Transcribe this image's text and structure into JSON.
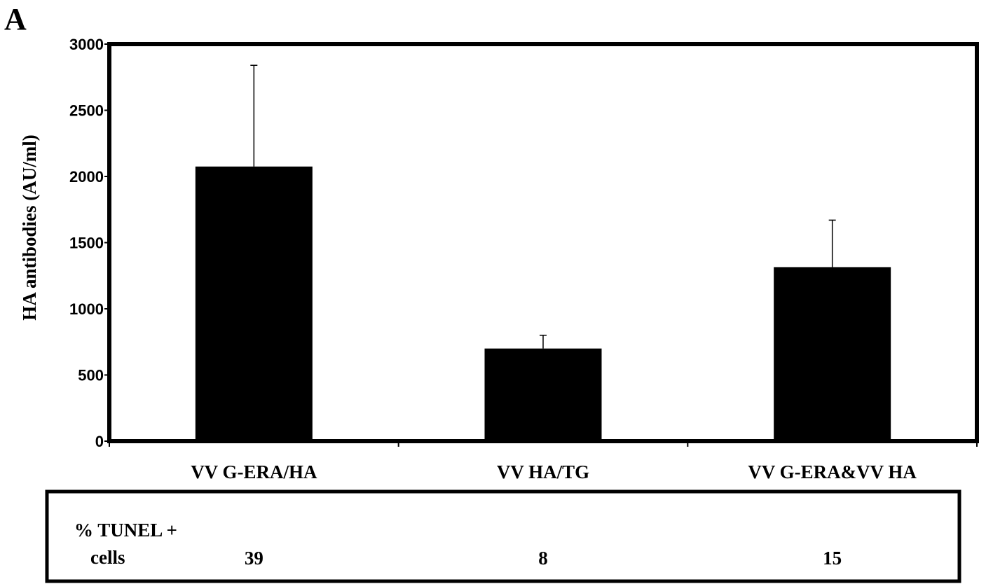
{
  "panel_label": "A",
  "chart_data": {
    "type": "bar",
    "ylabel": "HA antibodies (AU/ml)",
    "xlabel": "",
    "ylim": [
      0,
      3000
    ],
    "yticks": [
      "0",
      "500",
      "1000",
      "1500",
      "2000",
      "2500",
      "3000"
    ],
    "categories": [
      "VV G-ERA/HA",
      "VV HA/TG",
      "VV G-ERA&VV HA"
    ],
    "values": [
      2075,
      700,
      1315
    ],
    "error_upper": [
      2840,
      800,
      1670
    ],
    "bar_color": "#000000",
    "grid": false
  },
  "tunel_table": {
    "label_line1": "% TUNEL +",
    "label_line2": "cells",
    "values": [
      "39",
      "8",
      "15"
    ]
  }
}
